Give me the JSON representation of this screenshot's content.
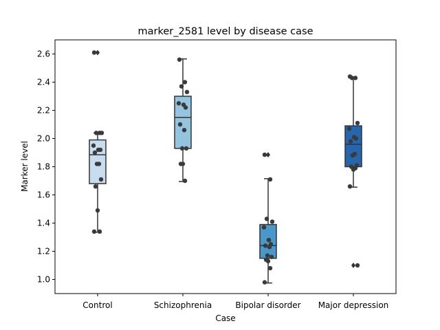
{
  "chart_data": {
    "type": "box",
    "title": "marker_2581 level by disease case",
    "xlabel": "Case",
    "ylabel": "Marker level",
    "categories": [
      "Control",
      "Schizophrenia",
      "Bipolar disorder",
      "Major depression"
    ],
    "ylim": [
      0.9,
      2.7
    ],
    "yticks": [
      1.0,
      1.2,
      1.4,
      1.6,
      1.8,
      2.0,
      2.2,
      2.4,
      2.6
    ],
    "ytick_labels": [
      "1.0",
      "1.2",
      "1.4",
      "1.6",
      "1.8",
      "2.0",
      "2.2",
      "2.4",
      "2.6"
    ],
    "grid": false,
    "legend": "none",
    "colors": {
      "boxes": [
        "#c7dcef",
        "#94c4df",
        "#4a98c9",
        "#2566ad"
      ],
      "points": "#3a3a3a",
      "lines": "#333333"
    },
    "boxes": [
      {
        "category": "Control",
        "whisker_low": 1.335,
        "q1": 1.68,
        "median": 1.885,
        "q3": 1.99,
        "whisker_high": 2.04,
        "outliers": [
          2.61
        ]
      },
      {
        "category": "Schizophrenia",
        "whisker_low": 1.695,
        "q1": 1.93,
        "median": 2.15,
        "q3": 2.3,
        "whisker_high": 2.565,
        "outliers": []
      },
      {
        "category": "Bipolar disorder",
        "whisker_low": 0.975,
        "q1": 1.15,
        "median": 1.24,
        "q3": 1.39,
        "whisker_high": 1.715,
        "outliers": [
          1.885
        ]
      },
      {
        "category": "Major depression",
        "whisker_low": 1.655,
        "q1": 1.8,
        "median": 1.96,
        "q3": 2.09,
        "whisker_high": 2.43,
        "outliers": [
          1.1
        ]
      }
    ],
    "points": [
      {
        "category": "Control",
        "values": [
          2.61,
          2.04,
          2.04,
          2.04,
          1.95,
          1.92,
          1.92,
          1.9,
          1.82,
          1.82,
          1.71,
          1.66,
          1.49,
          1.34,
          1.34
        ]
      },
      {
        "category": "Schizophrenia",
        "values": [
          2.56,
          2.4,
          2.37,
          2.33,
          2.25,
          2.24,
          2.22,
          2.1,
          2.06,
          1.93,
          1.93,
          1.82,
          1.82,
          1.7
        ]
      },
      {
        "category": "Bipolar disorder",
        "values": [
          1.885,
          1.71,
          1.43,
          1.41,
          1.37,
          1.28,
          1.25,
          1.24,
          1.23,
          1.17,
          1.16,
          1.14,
          1.13,
          1.08,
          0.98
        ]
      },
      {
        "category": "Major depression",
        "values": [
          2.44,
          2.43,
          2.43,
          2.11,
          2.07,
          2.01,
          2.0,
          1.98,
          1.89,
          1.88,
          1.81,
          1.8,
          1.78,
          1.79,
          1.66,
          1.1
        ]
      }
    ]
  }
}
